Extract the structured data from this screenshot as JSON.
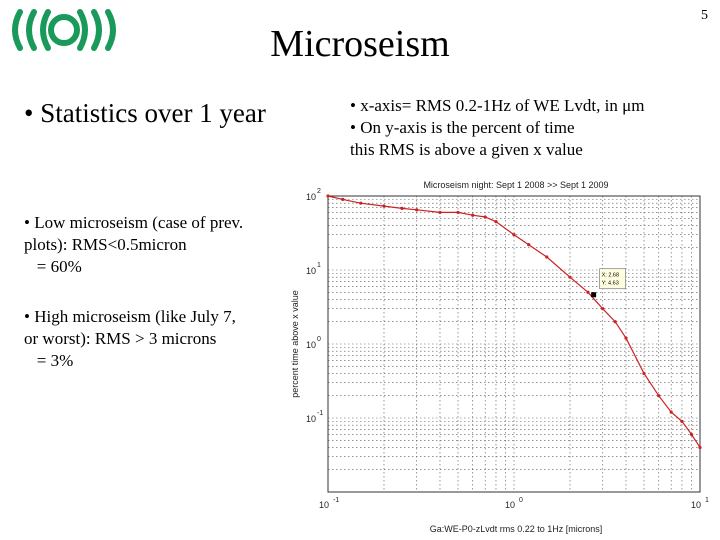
{
  "header": {
    "title": "Microseism",
    "page_number": "5",
    "logo_icon": "ego-logo-icon"
  },
  "main_bullet": "• Statistics over 1 year",
  "description": {
    "lines": [
      "• x-axis= RMS 0.2-1Hz of WE Lvdt, in μm",
      "• On y-axis is the percent of time",
      "this RMS is above a given x value"
    ]
  },
  "notes": [
    {
      "lines": [
        "• Low microseism (case of prev.",
        "plots): RMS<0.5micron",
        "   = 60%"
      ]
    },
    {
      "lines": [
        "• High microseism (like July 7,",
        "or worst): RMS > 3 microns",
        "   = 3%"
      ]
    }
  ],
  "colors": {
    "logo_green": "#1a9a5a",
    "series": "#cc2222",
    "grid": "#555555"
  },
  "chart_data": {
    "type": "line",
    "title": "Microseism night: Sept 1 2008 >> Sept 1 2009",
    "xlabel": "Ga:WE-P0-zLvdt rms 0.22 to 1Hz [microns]",
    "ylabel": "percent time above x value",
    "x_scale": "log",
    "y_scale": "log",
    "xlim": [
      0.1,
      10
    ],
    "ylim": [
      0.01,
      100
    ],
    "x_ticks": [
      {
        "value": 0.1,
        "base": "10",
        "exp": "-1"
      },
      {
        "value": 1,
        "base": "10",
        "exp": "0"
      },
      {
        "value": 10,
        "base": "10",
        "exp": "1"
      }
    ],
    "y_ticks": [
      {
        "value": 0.1,
        "base": "10",
        "exp": "-1"
      },
      {
        "value": 1,
        "base": "10",
        "exp": "0"
      },
      {
        "value": 10,
        "base": "10",
        "exp": "1"
      },
      {
        "value": 100,
        "base": "10",
        "exp": "2"
      }
    ],
    "grid": true,
    "series": [
      {
        "x": [
          0.1,
          0.12,
          0.15,
          0.2,
          0.25,
          0.3,
          0.4,
          0.5,
          0.6,
          0.7,
          0.8,
          1.0,
          1.2,
          1.5,
          2.0,
          2.5,
          3.0,
          3.5,
          4.0,
          5.0,
          6.0,
          7.0,
          8.0,
          9.0,
          10.0
        ],
        "y": [
          100,
          90,
          80,
          73,
          68,
          65,
          60,
          60,
          55,
          52,
          45,
          30,
          22,
          15,
          8,
          5,
          3,
          2,
          1.2,
          0.4,
          0.2,
          0.12,
          0.09,
          0.06,
          0.04
        ]
      }
    ],
    "datatip": {
      "x": 2.68,
      "y": 4.63,
      "lines": [
        "X: 2.68",
        "Y: 4.63"
      ]
    }
  }
}
